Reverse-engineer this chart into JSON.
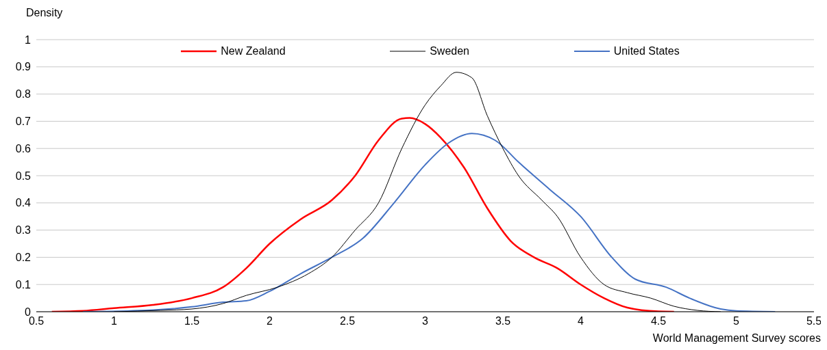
{
  "chart_data": {
    "type": "line",
    "ylabel": "Density",
    "xlabel": "World Management Survey scores",
    "xlim": [
      0.5,
      5.5
    ],
    "xticks": [
      0.5,
      1,
      1.5,
      2,
      2.5,
      3,
      3.5,
      4,
      4.5,
      5,
      5.5
    ],
    "ylim": [
      0,
      1
    ],
    "yticks": [
      0,
      0.1,
      0.2,
      0.3,
      0.4,
      0.5,
      0.6,
      0.7,
      0.8,
      0.9,
      1
    ],
    "grid": "y",
    "legend": "top",
    "marker": "none",
    "line_style": "solid",
    "series": [
      {
        "name": "New Zealand",
        "color": "#ff0000",
        "x": [
          0.6,
          0.8,
          1.0,
          1.25,
          1.5,
          1.7,
          1.85,
          2.0,
          2.2,
          2.4,
          2.55,
          2.7,
          2.85,
          2.9,
          3.0,
          3.1,
          3.25,
          3.4,
          3.55,
          3.7,
          3.85,
          4.0,
          4.15,
          4.3,
          4.5,
          4.6
        ],
        "values": [
          0,
          0.003,
          0.013,
          0.025,
          0.05,
          0.09,
          0.16,
          0.25,
          0.34,
          0.41,
          0.5,
          0.63,
          0.71,
          0.712,
          0.69,
          0.64,
          0.53,
          0.38,
          0.26,
          0.2,
          0.16,
          0.1,
          0.05,
          0.015,
          0.001,
          0
        ]
      },
      {
        "name": "Sweden",
        "color": "#000000",
        "x": [
          1.0,
          1.3,
          1.5,
          1.7,
          1.85,
          2.05,
          2.25,
          2.4,
          2.55,
          2.7,
          2.85,
          3.0,
          3.1,
          3.2,
          3.3,
          3.4,
          3.5,
          3.6,
          3.75,
          3.85,
          4.0,
          4.15,
          4.3,
          4.45,
          4.6,
          4.75,
          4.9
        ],
        "values": [
          0,
          0.005,
          0.01,
          0.03,
          0.06,
          0.09,
          0.14,
          0.2,
          0.3,
          0.4,
          0.6,
          0.76,
          0.83,
          0.88,
          0.86,
          0.72,
          0.6,
          0.5,
          0.41,
          0.35,
          0.2,
          0.1,
          0.07,
          0.05,
          0.02,
          0.005,
          0
        ]
      },
      {
        "name": "United States",
        "color": "#4472c4",
        "x": [
          0.8,
          1.2,
          1.5,
          1.7,
          1.85,
          2.0,
          2.2,
          2.4,
          2.6,
          2.8,
          3.0,
          3.15,
          3.3,
          3.45,
          3.6,
          3.8,
          4.0,
          4.2,
          4.35,
          4.55,
          4.7,
          4.9,
          5.0,
          5.25
        ],
        "values": [
          0,
          0.005,
          0.018,
          0.035,
          0.04,
          0.075,
          0.14,
          0.2,
          0.27,
          0.4,
          0.54,
          0.62,
          0.655,
          0.63,
          0.55,
          0.45,
          0.35,
          0.2,
          0.12,
          0.09,
          0.05,
          0.01,
          0.003,
          0
        ]
      }
    ]
  }
}
